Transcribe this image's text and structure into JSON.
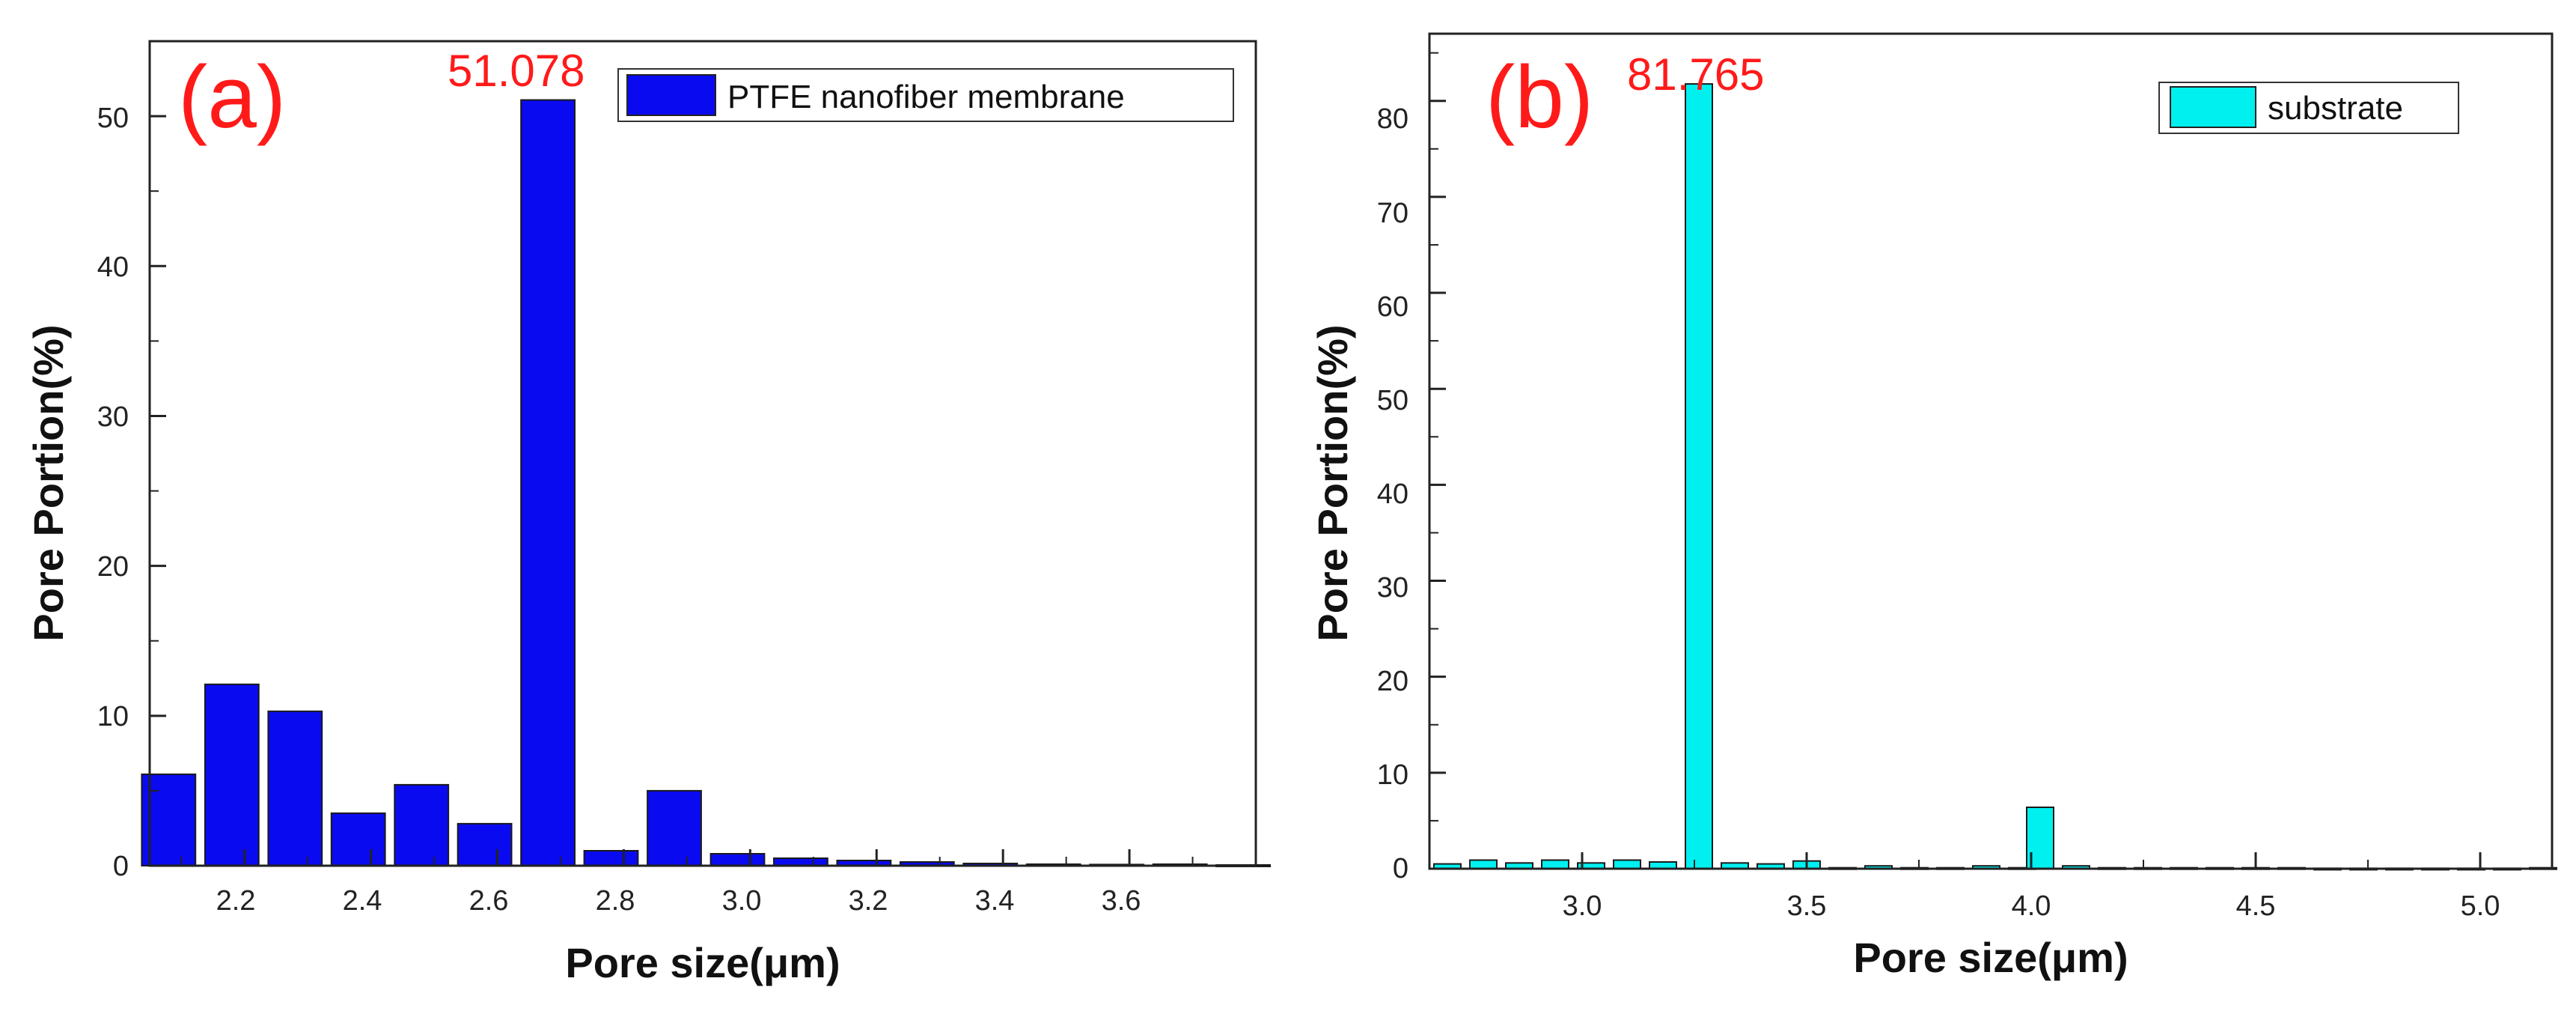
{
  "chart_data": [
    {
      "id": "a",
      "type": "bar",
      "panel_label": "(a)",
      "annotation": "51.078",
      "legend": "PTFE nanofiber membrane",
      "series": [
        {
          "name": "PTFE nanofiber membrane",
          "color": "#0a0af0",
          "x": [
            2.08,
            2.18,
            2.28,
            2.38,
            2.48,
            2.58,
            2.68,
            2.78,
            2.88,
            2.98,
            3.08,
            3.18,
            3.28,
            3.38,
            3.48,
            3.58,
            3.68,
            3.78
          ],
          "values": [
            6.1,
            12.1,
            10.3,
            3.5,
            5.4,
            2.8,
            51.078,
            1.0,
            5.0,
            0.8,
            0.5,
            0.35,
            0.25,
            0.15,
            0.1,
            0.08,
            0.1,
            0.05
          ]
        }
      ],
      "bar_width": 0.085,
      "xlabel": "Pore size(μm)",
      "ylabel": "Pore Portion(%)",
      "xlim": [
        2.05,
        3.8
      ],
      "ylim": [
        0,
        55
      ],
      "xticks": [
        "2.2",
        "2.4",
        "2.6",
        "2.8",
        "3.0",
        "3.2",
        "3.4",
        "3.6"
      ],
      "xtick_values": [
        2.2,
        2.4,
        2.6,
        2.8,
        3.0,
        3.2,
        3.4,
        3.6
      ],
      "yticks": [
        "0",
        "10",
        "20",
        "30",
        "40",
        "50"
      ],
      "ytick_values": [
        0,
        10,
        20,
        30,
        40,
        50
      ],
      "legend_position": "top-right",
      "grid": false
    },
    {
      "id": "b",
      "type": "bar",
      "panel_label": "(b)",
      "annotation": "81.765",
      "legend": "substrate",
      "series": [
        {
          "name": "substrate",
          "color": "#00f0f0",
          "x": [
            2.7,
            2.78,
            2.86,
            2.94,
            3.02,
            3.1,
            3.18,
            3.26,
            3.34,
            3.42,
            3.5,
            3.58,
            3.66,
            3.74,
            3.82,
            3.9,
            3.98,
            4.02,
            4.1,
            4.18,
            4.26,
            4.34,
            4.42,
            4.5,
            4.58,
            4.66,
            4.74,
            4.82,
            4.9,
            4.98,
            5.06,
            5.14
          ],
          "values": [
            0.5,
            0.9,
            0.6,
            0.9,
            0.6,
            0.9,
            0.7,
            81.765,
            0.6,
            0.5,
            0.8,
            0.1,
            0.3,
            0.1,
            0.1,
            0.3,
            0.1,
            6.4,
            0.3,
            0.1,
            0.1,
            0.1,
            0.1,
            0.1,
            0.1,
            0.05,
            0.05,
            0.05,
            0.05,
            0.05,
            0.05,
            0.1
          ]
        }
      ],
      "bar_width": 0.06,
      "xlabel": "Pore size(μm)",
      "ylabel": "Pore Portion(%)",
      "xlim": [
        2.66,
        5.16
      ],
      "ylim": [
        0,
        87
      ],
      "xticks": [
        "3.0",
        "3.5",
        "4.0",
        "4.5",
        "5.0"
      ],
      "xtick_values": [
        3.0,
        3.5,
        4.0,
        4.5,
        5.0
      ],
      "yticks": [
        "0",
        "10",
        "20",
        "30",
        "40",
        "50",
        "60",
        "70",
        "80"
      ],
      "ytick_values": [
        0,
        10,
        20,
        30,
        40,
        50,
        60,
        70,
        80
      ],
      "legend_position": "top-right",
      "grid": false
    }
  ]
}
